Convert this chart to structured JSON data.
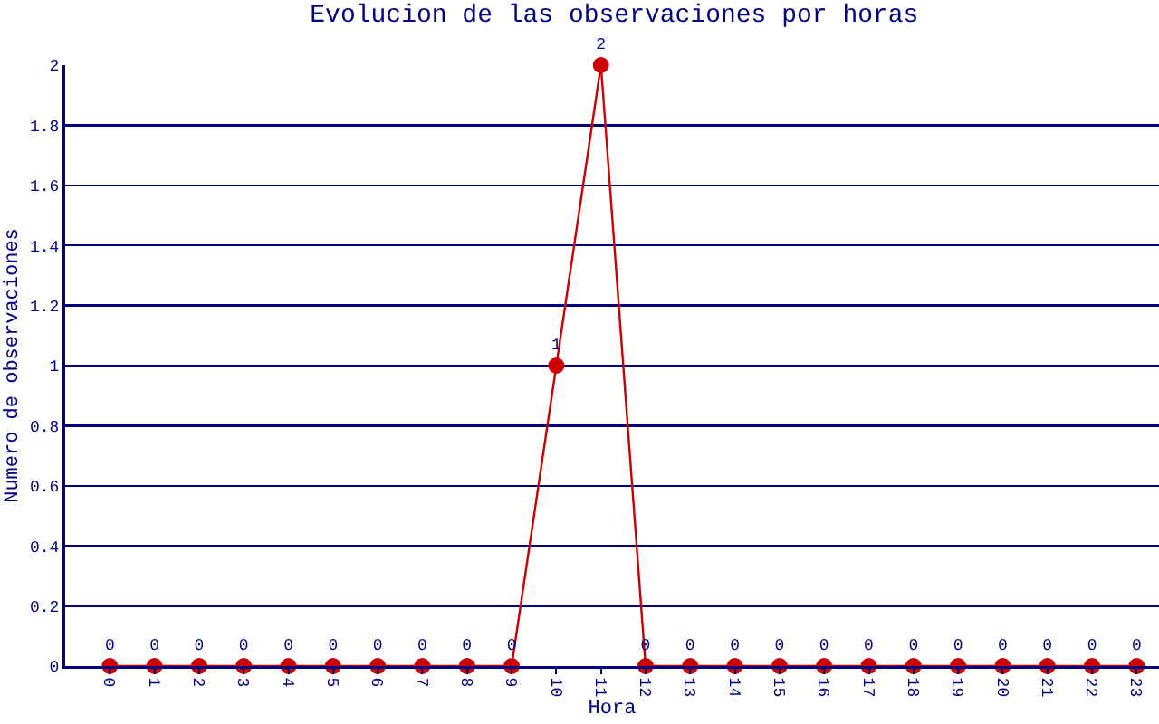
{
  "chart_data": {
    "type": "line",
    "title": "Evolucion de las observaciones por horas",
    "xlabel": "Hora",
    "ylabel": "Numero de observaciones",
    "categories": [
      "0",
      "1",
      "2",
      "3",
      "4",
      "5",
      "6",
      "7",
      "8",
      "9",
      "10",
      "11",
      "12",
      "13",
      "14",
      "15",
      "16",
      "17",
      "18",
      "19",
      "20",
      "21",
      "22",
      "23"
    ],
    "series": [
      {
        "color": "#cc0000",
        "values": [
          0,
          0,
          0,
          0,
          0,
          0,
          0,
          0,
          0,
          0,
          1,
          2,
          0,
          0,
          0,
          0,
          0,
          0,
          0,
          0,
          0,
          0,
          0,
          0
        ]
      }
    ],
    "ylim": [
      0,
      2
    ],
    "yticks": [
      0,
      0.2,
      0.4,
      0.6,
      0.8,
      1,
      1.2,
      1.4,
      1.6,
      1.8,
      2
    ],
    "grid": "y",
    "marker": "circle",
    "line_style": "solid",
    "data_labels": true
  }
}
